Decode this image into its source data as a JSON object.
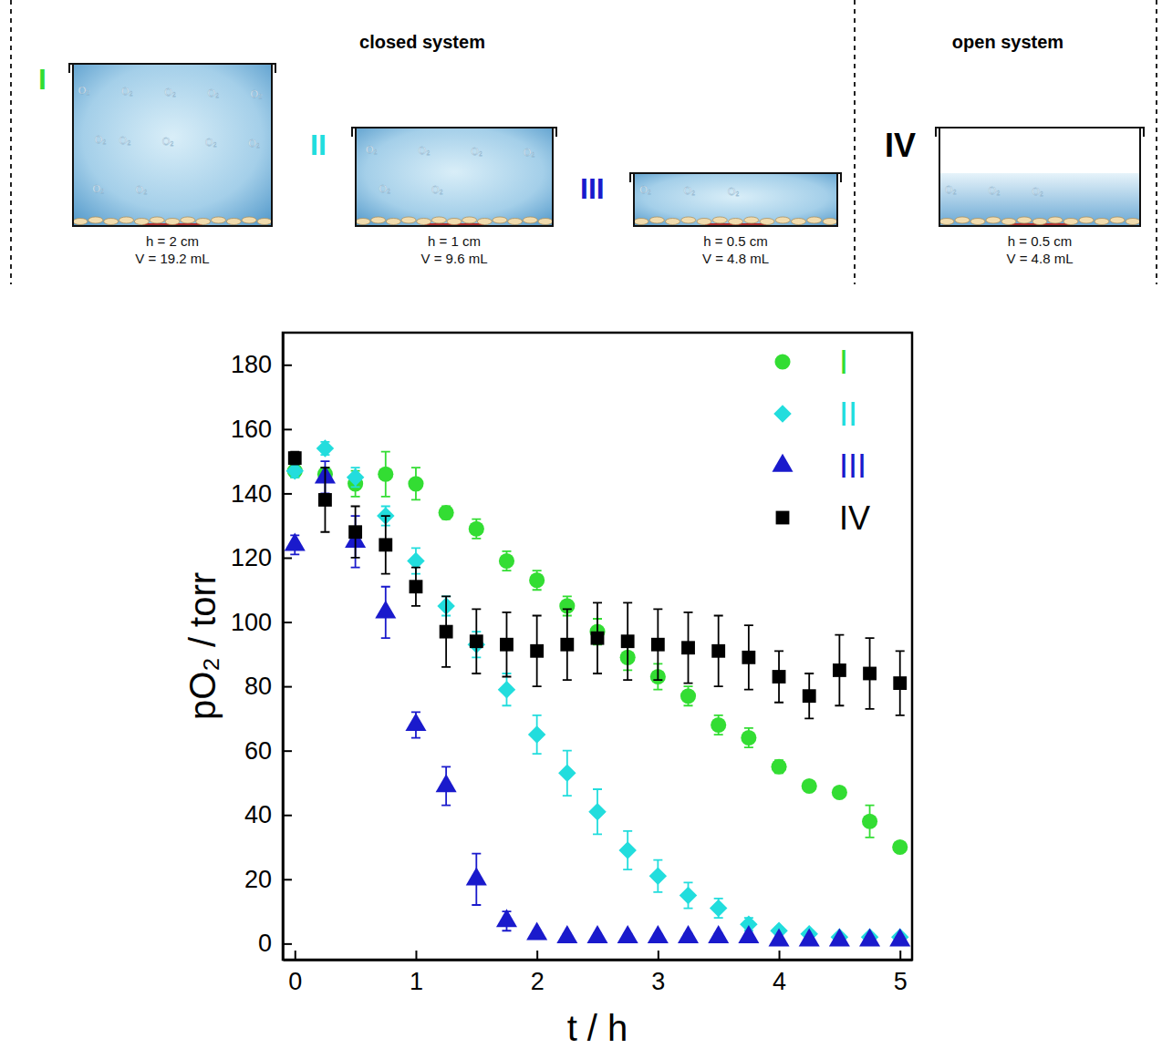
{
  "diagram": {
    "bubble_text": "O₂",
    "closed_system": {
      "title": "closed system",
      "vessels": [
        {
          "label": "I",
          "color": "#33dd33",
          "height": "h = 2 cm",
          "volume": "V = 19.2 mL"
        },
        {
          "label": "II",
          "color": "#22dddd",
          "height": "h = 1 cm",
          "volume": "V = 9.6 mL"
        },
        {
          "label": "III",
          "color": "#1a1acc",
          "height": "h = 0.5 cm",
          "volume": "V = 4.8 mL"
        }
      ]
    },
    "open_system": {
      "title": "open system",
      "vessels": [
        {
          "label": "IV",
          "color": "#000000",
          "height": "h = 0.5 cm",
          "volume": "V = 4.8 mL"
        }
      ]
    }
  },
  "chart_data": {
    "type": "scatter",
    "x_label": "t / h",
    "y_label": "pO₂ / torr",
    "xlim": [
      -0.1,
      5.1
    ],
    "ylim": [
      -5,
      190
    ],
    "xticks": [
      0,
      1,
      2,
      3,
      4,
      5
    ],
    "yticks": [
      0,
      20,
      40,
      60,
      80,
      100,
      120,
      140,
      160,
      180
    ],
    "grid": false,
    "legend": "upper right",
    "x": [
      0,
      0.25,
      0.5,
      0.75,
      1,
      1.25,
      1.5,
      1.75,
      2,
      2.25,
      2.5,
      2.75,
      3,
      3.25,
      3.5,
      3.75,
      4,
      4.25,
      4.5,
      4.75,
      5
    ],
    "series": [
      {
        "name": "I",
        "color": "#33dd33",
        "marker": "circle",
        "values": [
          147,
          146,
          143,
          146,
          143,
          134,
          129,
          119,
          113,
          105,
          97,
          89,
          83,
          77,
          68,
          64,
          55,
          49,
          47,
          38,
          30
        ],
        "errors": [
          2,
          2,
          4,
          7,
          5,
          2,
          3,
          3,
          3,
          3,
          4,
          4,
          4,
          3,
          3,
          3,
          2,
          1,
          1,
          5,
          1
        ]
      },
      {
        "name": "II",
        "color": "#22dddd",
        "marker": "diamond",
        "values": [
          147,
          154,
          145,
          133,
          119,
          105,
          93,
          79,
          65,
          53,
          41,
          29,
          21,
          15,
          11,
          6,
          4,
          3,
          2,
          2,
          2
        ],
        "errors": [
          2,
          2,
          3,
          3,
          4,
          3,
          4,
          5,
          6,
          7,
          7,
          6,
          5,
          4,
          3,
          2,
          1,
          1,
          1,
          1,
          1
        ]
      },
      {
        "name": "III",
        "color": "#1a1acc",
        "marker": "triangle",
        "values": [
          124,
          145,
          125,
          103,
          68,
          49,
          20,
          7,
          3,
          2,
          2,
          2,
          2,
          2,
          2,
          2,
          1,
          1,
          1,
          1,
          1
        ],
        "errors": [
          3,
          5,
          8,
          8,
          4,
          6,
          8,
          3,
          1,
          1,
          1,
          1,
          1,
          1,
          1,
          1,
          1,
          1,
          1,
          1,
          1
        ]
      },
      {
        "name": "IV",
        "color": "#000000",
        "marker": "square",
        "values": [
          151,
          138,
          128,
          124,
          111,
          97,
          94,
          93,
          91,
          93,
          95,
          94,
          93,
          92,
          91,
          89,
          83,
          77,
          85,
          84,
          81
        ],
        "errors": [
          2,
          10,
          8,
          9,
          6,
          11,
          10,
          10,
          11,
          11,
          11,
          12,
          11,
          11,
          11,
          10,
          8,
          7,
          11,
          11,
          10
        ]
      }
    ]
  }
}
